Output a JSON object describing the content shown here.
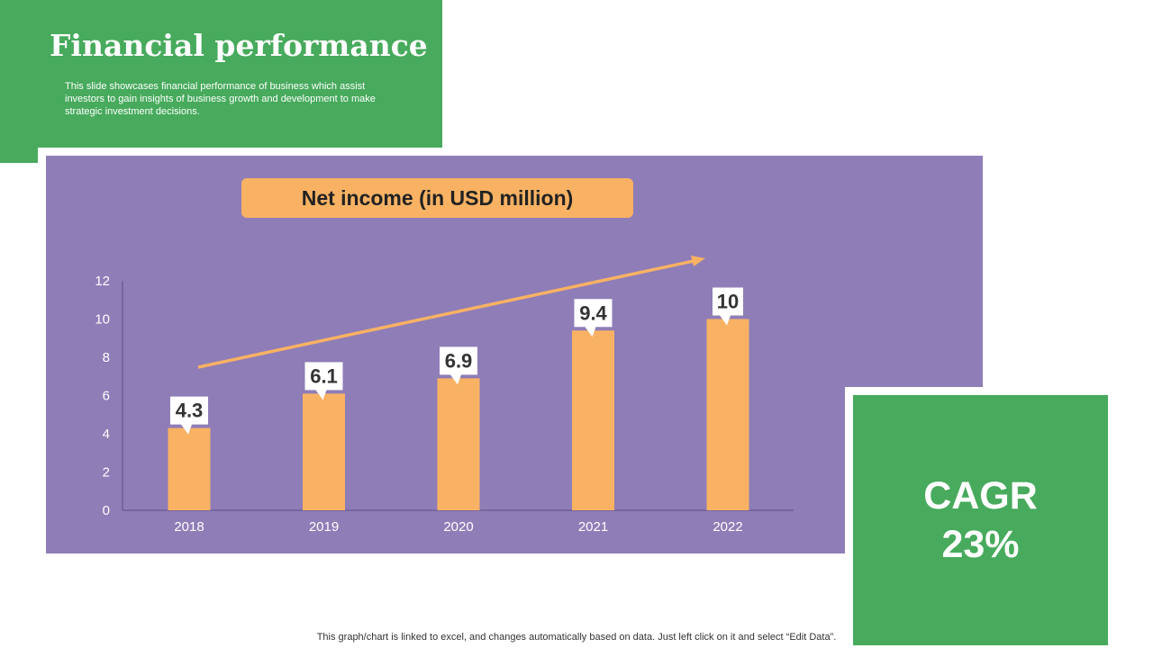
{
  "header": {
    "title": "Financial performance",
    "subtitle": "This slide showcases financial performance of business which assist investors to gain insights of business growth and development to make strategic investment decisions."
  },
  "cagr": {
    "label": "CAGR",
    "value": "23%"
  },
  "footer": {
    "note": "This graph/chart is linked to excel,  and changes automatically based on data. Just left click on it and select “Edit Data”."
  },
  "colors": {
    "green": "#47aa5c",
    "purple": "#8f7db7",
    "orange": "#f9b264"
  },
  "chart_data": {
    "type": "bar",
    "title": "Net income (in USD million)",
    "categories": [
      "2018",
      "2019",
      "2020",
      "2021",
      "2022"
    ],
    "values": [
      4.3,
      6.1,
      6.9,
      9.4,
      10
    ],
    "value_labels": [
      "4.3",
      "6.1",
      "6.9",
      "9.4",
      "10"
    ],
    "y_ticks": [
      0,
      2,
      4,
      6,
      8,
      10,
      12
    ],
    "ylim": [
      0,
      12
    ],
    "xlabel": "",
    "ylabel": "",
    "grid": false,
    "trend_arrow": true
  }
}
